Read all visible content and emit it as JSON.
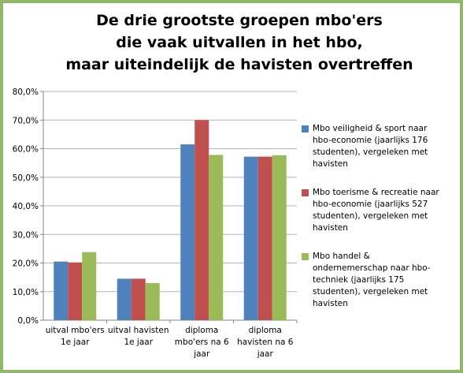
{
  "colors": {
    "frame": "#8fb86a",
    "series": [
      "#4f81bd",
      "#c0504d",
      "#9bbb59"
    ],
    "grid": "#b4b4b4",
    "axis": "#868686"
  },
  "chart_data": {
    "type": "bar",
    "title_lines": [
      "De drie grootste groepen mbo'ers",
      "die vaak uitvallen in het hbo,",
      "maar uiteindelijk de havisten overtreffen"
    ],
    "categories": [
      [
        "uitval mbo'ers",
        "1e jaar"
      ],
      [
        "uitval havisten",
        "1e jaar"
      ],
      [
        "diploma",
        "mbo'ers na 6",
        "jaar"
      ],
      [
        "diploma",
        "havisten na 6",
        "jaar"
      ]
    ],
    "series": [
      {
        "name": [
          "Mbo veiligheid & sport naar",
          "hbo-economie (jaarlijks 176",
          "studenten), vergeleken met",
          "havisten"
        ],
        "values": [
          20.5,
          14.5,
          61.5,
          57.2
        ]
      },
      {
        "name": [
          "Mbo toerisme & recreatie naar",
          "hbo-economie (jaarlijks 527",
          "studenten), vergeleken met",
          "havisten"
        ],
        "values": [
          20.2,
          14.5,
          70.0,
          57.2
        ]
      },
      {
        "name": [
          "Mbo handel &",
          "ondernemerschap naar hbo-",
          "techniek (jaarlijks 175",
          "studenten), vergeleken met",
          "havisten"
        ],
        "values": [
          23.8,
          13.0,
          57.8,
          57.7
        ]
      }
    ],
    "y_ticks": [
      "0,0%",
      "10,0%",
      "20,0%",
      "30,0%",
      "40,0%",
      "50,0%",
      "60,0%",
      "70,0%",
      "80,0%"
    ],
    "ylim": [
      0,
      80
    ],
    "grid": true,
    "legend_position": "right"
  }
}
